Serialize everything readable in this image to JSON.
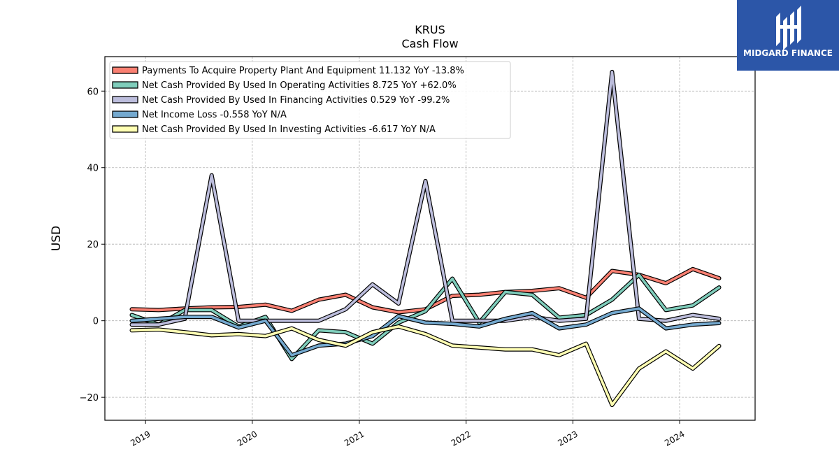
{
  "brand": {
    "name": "MIDGARD FINANCE",
    "color": "#2c56a8"
  },
  "chart_data": {
    "type": "line",
    "title": "KRUS",
    "subtitle": "Cash Flow",
    "ylabel": "USD",
    "xlabel": "",
    "ylim": [
      -26,
      69
    ],
    "xlim": [
      "2018-08-15",
      "2024-09-15"
    ],
    "yticks": [
      -20,
      0,
      20,
      40,
      60
    ],
    "ytick_labels": [
      "−20",
      "0",
      "20",
      "40",
      "60"
    ],
    "xticks": [
      "2019-01-01",
      "2020-01-01",
      "2021-01-01",
      "2022-01-01",
      "2023-01-01",
      "2024-01-01"
    ],
    "xtick_labels": [
      "2019",
      "2020",
      "2021",
      "2022",
      "2023",
      "2024"
    ],
    "grid": true,
    "legend_position": "top-left",
    "x": [
      "2018-11-15",
      "2019-02-15",
      "2019-05-15",
      "2019-08-15",
      "2019-11-15",
      "2020-02-15",
      "2020-05-15",
      "2020-08-15",
      "2020-11-15",
      "2021-02-15",
      "2021-05-15",
      "2021-08-15",
      "2021-11-15",
      "2022-02-15",
      "2022-05-15",
      "2022-08-15",
      "2022-11-15",
      "2023-02-15",
      "2023-05-15",
      "2023-08-15",
      "2023-11-15",
      "2024-02-15",
      "2024-05-15"
    ],
    "series": [
      {
        "name": "Payments To Acquire Property Plant And Equipment",
        "legend": "Payments To Acquire Property Plant And Equipment  11.132 YoY -13.8%",
        "color": "#fa8072",
        "values": [
          3.0,
          2.8,
          3.2,
          3.5,
          3.6,
          4.2,
          2.6,
          5.5,
          6.8,
          3.5,
          2.2,
          3.0,
          6.5,
          6.8,
          7.5,
          7.8,
          8.5,
          6.0,
          13.0,
          12.0,
          9.8,
          13.5,
          11.1
        ]
      },
      {
        "name": "Net Cash Provided By Used In Operating Activities",
        "legend": "Net Cash Provided By Used In Operating Activities  8.725 YoY +62.0%",
        "color": "#7fcdbb",
        "values": [
          1.5,
          -1.0,
          2.8,
          2.8,
          -1.5,
          1.0,
          -10.0,
          -2.5,
          -3.0,
          -6.0,
          -0.5,
          2.5,
          11.0,
          -0.5,
          7.5,
          6.8,
          0.8,
          1.5,
          5.5,
          12.0,
          2.8,
          4.0,
          8.7
        ]
      },
      {
        "name": "Net Cash Provided By Used In Financing Activities",
        "legend": "Net Cash Provided By Used In Financing Activities  0.529 YoY -99.2%",
        "color": "#bcbddc",
        "values": [
          -1.0,
          -1.0,
          0.5,
          38.0,
          0.0,
          0.0,
          0.0,
          0.0,
          3.0,
          9.5,
          4.5,
          36.5,
          0.0,
          0.0,
          0.0,
          1.0,
          0.0,
          0.5,
          65.0,
          0.5,
          0.0,
          1.5,
          0.5
        ]
      },
      {
        "name": "Net Income Loss",
        "legend": "Net Income Loss  -0.558 YoY N/A",
        "color": "#74a9cf",
        "values": [
          0.0,
          0.5,
          1.0,
          1.0,
          -1.8,
          0.0,
          -9.0,
          -6.5,
          -6.0,
          -4.0,
          1.2,
          -0.5,
          -0.8,
          -1.5,
          0.5,
          2.0,
          -2.0,
          -1.0,
          2.0,
          3.2,
          -2.0,
          -1.0,
          -0.6
        ]
      },
      {
        "name": "Net Cash Provided By Used In Investing Activities",
        "legend": "Net Cash Provided By Used In Investing Activities  -6.617 YoY N/A",
        "color": "#ffffb3",
        "values": [
          -2.5,
          -2.3,
          -3.0,
          -3.8,
          -3.5,
          -4.0,
          -2.0,
          -5.0,
          -6.5,
          -3.0,
          -1.5,
          -3.5,
          -6.5,
          -7.0,
          -7.5,
          -7.5,
          -9.0,
          -6.0,
          -22.0,
          -12.5,
          -8.0,
          -12.5,
          -6.6
        ]
      }
    ]
  }
}
